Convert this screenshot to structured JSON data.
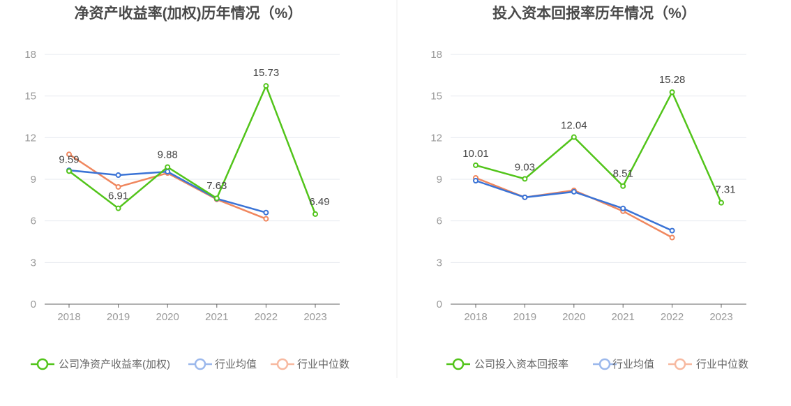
{
  "colors": {
    "company": "#52c41a",
    "avg": "#3a73d6",
    "median": "#f0875e",
    "grid": "#e6e9ef",
    "axis": "#666666"
  },
  "chart_data": [
    {
      "type": "line",
      "title": "净资产收益率(加权)历年情况（%）",
      "categories": [
        "2018",
        "2019",
        "2020",
        "2021",
        "2022",
        "2023"
      ],
      "ylim": [
        0,
        18
      ],
      "yticks": [
        "0",
        "3",
        "6",
        "9",
        "12",
        "15",
        "18"
      ],
      "grid": true,
      "legend_position": "bottom",
      "series": [
        {
          "name": "公司净资产收益率(加权)",
          "key": "company",
          "values": [
            9.59,
            6.91,
            9.88,
            7.63,
            15.73,
            6.49
          ],
          "labels": [
            "9.59",
            "6.91",
            "9.88",
            "7.63",
            "15.73",
            "6.49"
          ]
        },
        {
          "name": "行业均值",
          "key": "avg",
          "values": [
            9.65,
            9.3,
            9.55,
            7.6,
            6.6,
            null
          ]
        },
        {
          "name": "行业中位数",
          "key": "median",
          "values": [
            10.8,
            8.45,
            9.45,
            7.55,
            6.15,
            null
          ]
        }
      ]
    },
    {
      "type": "line",
      "title": "投入资本回报率历年情况（%）",
      "categories": [
        "2018",
        "2019",
        "2020",
        "2021",
        "2022",
        "2023"
      ],
      "ylim": [
        0,
        18
      ],
      "yticks": [
        "0",
        "3",
        "6",
        "9",
        "12",
        "15",
        "18"
      ],
      "grid": true,
      "legend_position": "bottom",
      "series": [
        {
          "name": "公司投入资本回报率",
          "key": "company",
          "values": [
            10.01,
            9.03,
            12.04,
            8.51,
            15.28,
            7.31
          ],
          "labels": [
            "10.01",
            "9.03",
            "12.04",
            "8.51",
            "15.28",
            "7.31"
          ]
        },
        {
          "name": "行业均值",
          "key": "avg",
          "values": [
            8.9,
            7.7,
            8.1,
            6.9,
            5.3,
            null
          ]
        },
        {
          "name": "行业中位数",
          "key": "median",
          "values": [
            9.1,
            7.7,
            8.2,
            6.7,
            4.8,
            null
          ]
        }
      ]
    }
  ]
}
